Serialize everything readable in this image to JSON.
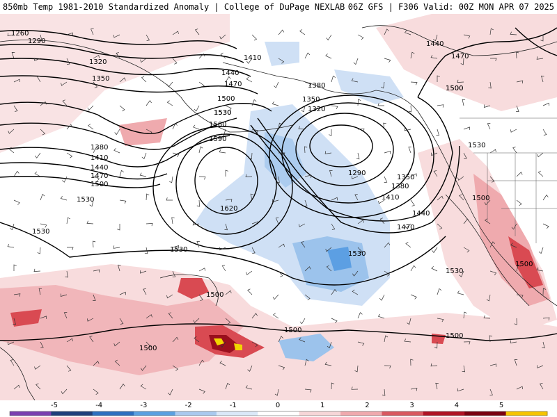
{
  "header": {
    "title_left": "850mb Temp 1981-2010 Standardized Anomaly | College of DuPage NEXLAB",
    "title_right": "06Z GFS | F306 Valid: 00Z MON APR 07 2025"
  },
  "contour_labels": [
    "1260",
    "1290",
    "1320",
    "1350",
    "1380",
    "1410",
    "1440",
    "1470",
    "1500",
    "1530",
    "1560",
    "1590",
    "1620",
    "1410",
    "1440",
    "1470",
    "1500",
    "1530",
    "1380",
    "1350",
    "1320",
    "1290",
    "1350",
    "1380",
    "1410",
    "1440",
    "1470",
    "1500",
    "1530",
    "1530",
    "1530",
    "1530",
    "1530",
    "1500",
    "1500",
    "1500",
    "1500",
    "1440",
    "1470",
    "1500",
    "1530",
    "1500",
    "1500"
  ],
  "colorbar": {
    "ticks": [
      "-5",
      "-4",
      "-3",
      "-2",
      "-1",
      "0",
      "1",
      "2",
      "3",
      "4",
      "5"
    ],
    "colors": [
      "#7b3fb0",
      "#1f3f7a",
      "#2d6fbf",
      "#5aa0e0",
      "#a9c9ee",
      "#dbe8f8",
      "#ffffff",
      "#f6d6d8",
      "#efa9ad",
      "#d9585f",
      "#b01224",
      "#7a0010",
      "#f5c400"
    ]
  },
  "colors": {
    "cold_light": "#cfe0f5",
    "cold_mid": "#9cc3ec",
    "cold_strong": "#5c9fe3",
    "warm_light": "#f8dcdd",
    "warm_mid": "#efaaae",
    "warm_strong": "#d94a52",
    "warm_max": "#9a0f1d",
    "extreme": "#f1d600"
  }
}
